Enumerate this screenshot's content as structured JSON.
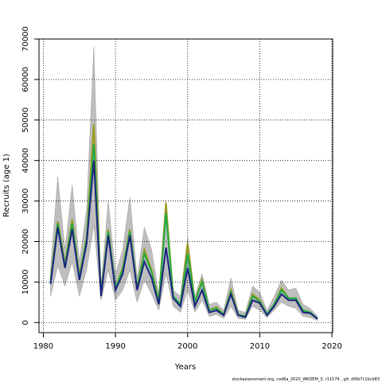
{
  "chart_data": {
    "type": "line",
    "xlabel": "Years",
    "ylabel": "Recruits (age 1)",
    "footer": "stockassessment.org, cod6a_2020_WKDEM_3, r11574 , git: df0b7c1bcb83",
    "x": [
      1981,
      1982,
      1983,
      1984,
      1985,
      1986,
      1987,
      1988,
      1989,
      1990,
      1991,
      1992,
      1993,
      1994,
      1995,
      1996,
      1997,
      1998,
      1999,
      2000,
      2001,
      2002,
      2003,
      2004,
      2005,
      2006,
      2007,
      2008,
      2009,
      2010,
      2011,
      2012,
      2013,
      2014,
      2015,
      2016,
      2017,
      2018
    ],
    "band": {
      "color": "#bebebe",
      "lower": [
        6500,
        14000,
        9000,
        15000,
        6500,
        13000,
        24000,
        5500,
        13000,
        5500,
        8000,
        13000,
        5000,
        10500,
        7000,
        3000,
        12000,
        4000,
        2500,
        8000,
        2500,
        5500,
        1500,
        2000,
        1000,
        4000,
        1000,
        800,
        4000,
        3000,
        1200,
        3000,
        5000,
        4000,
        3500,
        1500,
        1200,
        500
      ],
      "upper": [
        13000,
        36000,
        18000,
        34000,
        15000,
        28000,
        68000,
        9000,
        30000,
        12000,
        18000,
        31000,
        11000,
        23500,
        18000,
        7000,
        30000,
        8000,
        6500,
        21000,
        6500,
        12000,
        4500,
        5000,
        3000,
        11000,
        3000,
        2500,
        9000,
        7500,
        3000,
        6500,
        10500,
        8000,
        8500,
        4500,
        3500,
        1500
      ]
    },
    "series": [
      {
        "color": "#9a9a1e",
        "values": [
          10500,
          25000,
          14500,
          25500,
          11500,
          21000,
          49000,
          7000,
          23000,
          8500,
          13500,
          23000,
          8500,
          18000,
          13000,
          5500,
          29500,
          6500,
          4500,
          19500,
          5000,
          10500,
          3000,
          3800,
          2000,
          8000,
          2000,
          1500,
          7000,
          5500,
          2000,
          4500,
          8500,
          6000,
          6000,
          3000,
          2500,
          1000
        ]
      },
      {
        "color": "#22aa44",
        "values": [
          10000,
          24500,
          14000,
          24500,
          11000,
          20500,
          44000,
          7000,
          22500,
          8500,
          13000,
          22500,
          8500,
          17000,
          12500,
          5000,
          27000,
          6500,
          4500,
          17000,
          5000,
          10000,
          3000,
          3500,
          2000,
          7500,
          2000,
          1500,
          6500,
          5200,
          2000,
          4500,
          8000,
          6000,
          6000,
          3000,
          2500,
          1000
        ]
      },
      {
        "color": "#1a237e",
        "values": [
          9500,
          23500,
          13500,
          23000,
          10500,
          19500,
          40000,
          6500,
          21500,
          8000,
          12000,
          21500,
          8000,
          15000,
          11000,
          4500,
          18500,
          6000,
          4000,
          13500,
          4000,
          8000,
          2500,
          3000,
          1800,
          7000,
          1800,
          1300,
          5500,
          4800,
          1800,
          4000,
          7000,
          5500,
          5500,
          2500,
          2300,
          900
        ]
      }
    ],
    "xlim": [
      1979.4,
      2020.1
    ],
    "ylim": [
      -2500,
      70000
    ],
    "xticks": [
      1980,
      1990,
      2000,
      2010,
      2020
    ],
    "yticks": [
      0,
      10000,
      20000,
      30000,
      40000,
      50000,
      60000,
      70000
    ],
    "grid": true
  }
}
